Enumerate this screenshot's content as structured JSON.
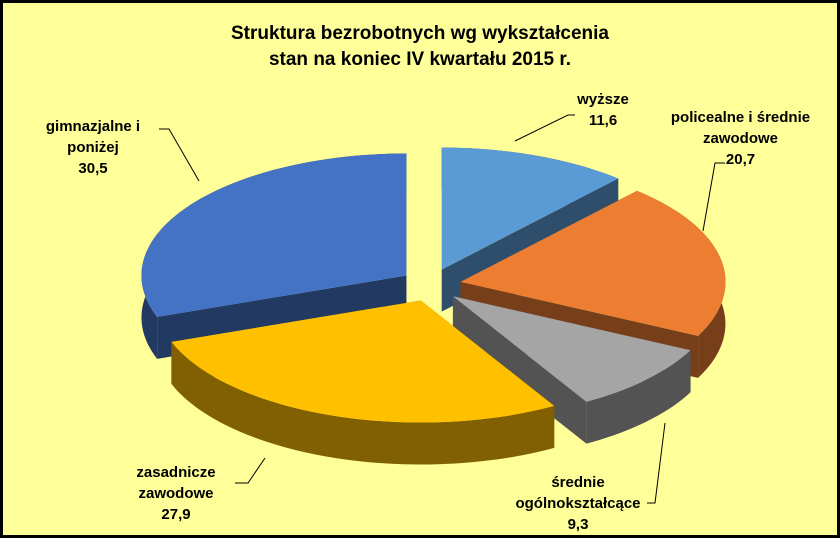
{
  "chart_data": {
    "type": "pie3d",
    "title": "Struktura bezrobotnych wg wykształcenia",
    "subtitle": "stan na koniec IV kwartału 2015 r.",
    "categories": [
      "wyższe",
      "policealne i średnie zawodowe",
      "średnie ogólnokształcące",
      "zasadnicze zawodowe",
      "gimnazjalne i poniżej"
    ],
    "values": [
      11.6,
      20.7,
      9.3,
      27.9,
      30.5
    ],
    "value_labels": [
      "11,6",
      "20,7",
      "9,3",
      "27,9",
      "30,5"
    ],
    "colors": [
      "#5b9bd5",
      "#ed7d31",
      "#a5a5a5",
      "#ffc000",
      "#4472c4"
    ]
  }
}
